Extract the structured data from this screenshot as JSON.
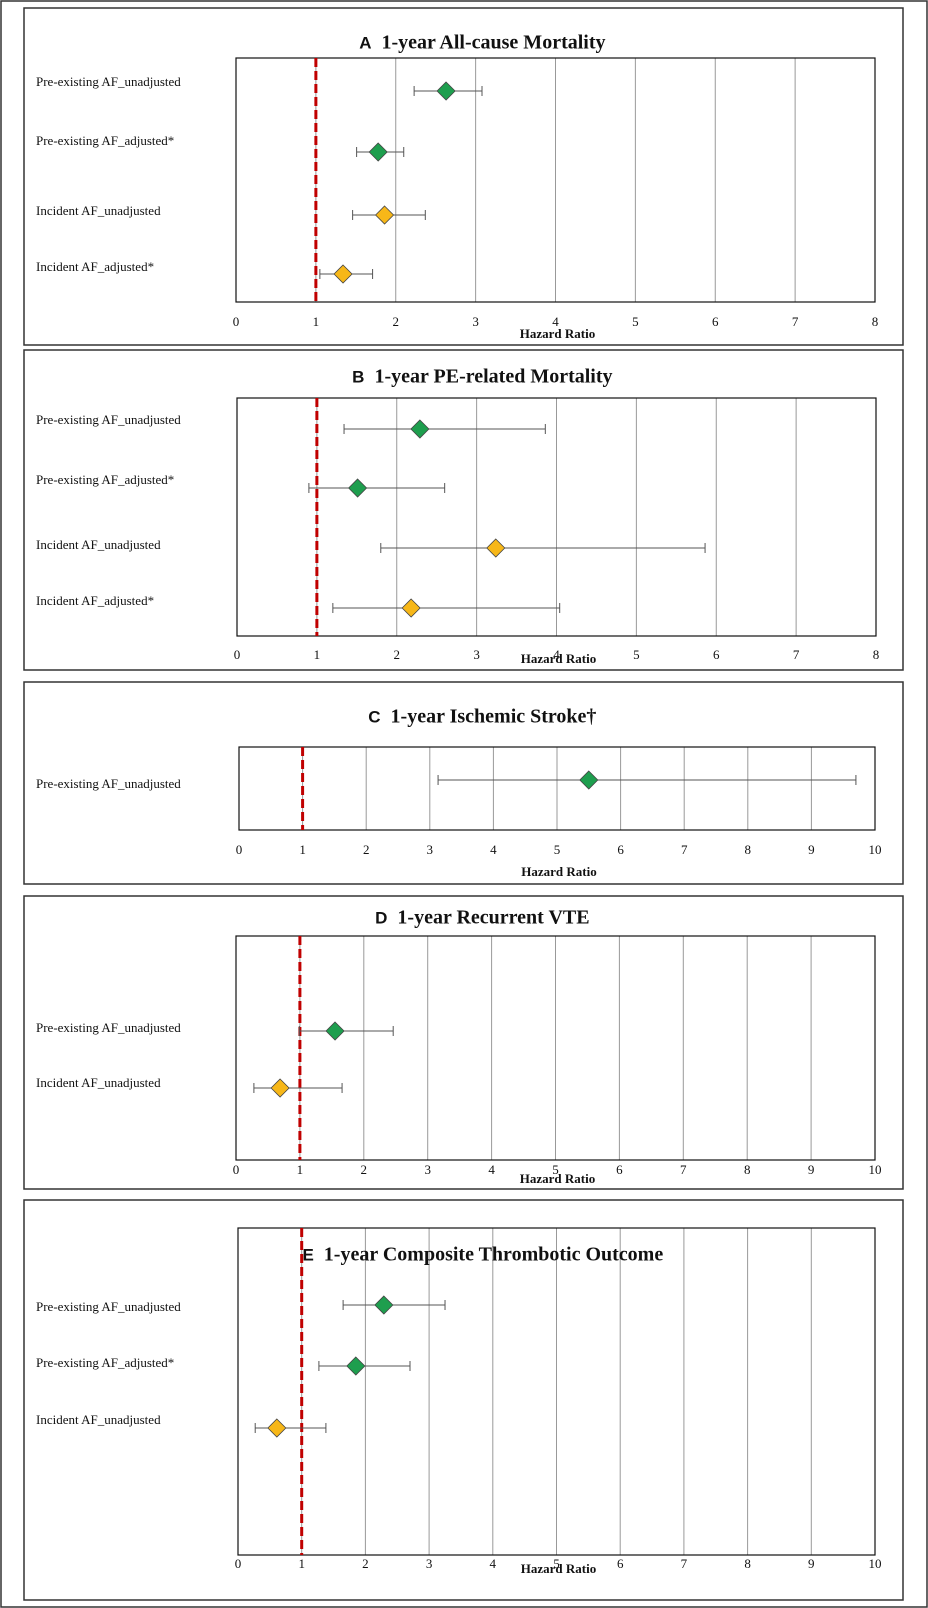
{
  "chart_data": [
    {
      "type": "forest",
      "panel_label": "A",
      "title": "1-year All-cause Mortality",
      "x_label": "Hazard Ratio",
      "categories": [
        "Pre-existing AF_unadjusted",
        "Pre-existing AF_adjusted*",
        "Incident AF_unadjusted",
        "Incident AF_adjusted*"
      ],
      "values": [
        2.63,
        1.78,
        1.86,
        1.34
      ],
      "lower": [
        2.23,
        1.51,
        1.46,
        1.05
      ],
      "upper": [
        3.08,
        2.1,
        2.37,
        1.71
      ],
      "colors": [
        "#1e9e4e",
        "#1e9e4e",
        "#f7b718",
        "#f7b718"
      ],
      "xlim": [
        0,
        8
      ],
      "xticks": [
        0,
        1,
        2,
        3,
        4,
        5,
        6,
        7,
        8
      ],
      "grid": true,
      "reference": 1,
      "reference_color": "#c00000"
    },
    {
      "type": "forest",
      "panel_label": "B",
      "title": "1-year PE-related Mortality",
      "x_label": "Hazard Ratio",
      "categories": [
        "Pre-existing AF_unadjusted",
        "Pre-existing AF_adjusted*",
        "Incident AF_unadjusted",
        "Incident AF_adjusted*"
      ],
      "values": [
        2.29,
        1.51,
        3.24,
        2.18
      ],
      "lower": [
        1.34,
        0.9,
        1.8,
        1.2
      ],
      "upper": [
        3.86,
        2.6,
        5.86,
        4.04
      ],
      "colors": [
        "#1e9e4e",
        "#1e9e4e",
        "#f7b718",
        "#f7b718"
      ],
      "xlim": [
        0,
        8
      ],
      "xticks": [
        0,
        1,
        2,
        3,
        4,
        5,
        6,
        7,
        8
      ],
      "grid": true,
      "reference": 1,
      "reference_color": "#c00000"
    },
    {
      "type": "forest",
      "panel_label": "C",
      "title": "1-year Ischemic Stroke†",
      "x_label": "Hazard Ratio",
      "categories": [
        "Pre-existing AF_unadjusted"
      ],
      "values": [
        5.5
      ],
      "lower": [
        3.13
      ],
      "upper": [
        9.7
      ],
      "colors": [
        "#1e9e4e"
      ],
      "xlim": [
        0,
        10
      ],
      "xticks": [
        0,
        1,
        2,
        3,
        4,
        5,
        6,
        7,
        8,
        9,
        10
      ],
      "grid": true,
      "reference": 1,
      "reference_color": "#c00000"
    },
    {
      "type": "forest",
      "panel_label": "D",
      "title": "1-year Recurrent VTE",
      "x_label": "Hazard Ratio",
      "categories": [
        "Pre-existing AF_unadjusted",
        "Incident AF_unadjusted"
      ],
      "values": [
        1.55,
        0.69
      ],
      "lower": [
        0.99,
        0.28
      ],
      "upper": [
        2.46,
        1.66
      ],
      "colors": [
        "#1e9e4e",
        "#f7b718"
      ],
      "xlim": [
        0,
        10
      ],
      "xticks": [
        0,
        1,
        2,
        3,
        4,
        5,
        6,
        7,
        8,
        9,
        10
      ],
      "grid": true,
      "reference": 1,
      "reference_color": "#c00000"
    },
    {
      "type": "forest",
      "panel_label": "E",
      "title": "1-year Composite Thrombotic Outcome",
      "x_label": "Hazard Ratio",
      "categories": [
        "Pre-existing AF_unadjusted",
        "Pre-existing AF_adjusted*",
        "Incident AF_unadjusted"
      ],
      "values": [
        2.29,
        1.85,
        0.61
      ],
      "lower": [
        1.65,
        1.27,
        0.27
      ],
      "upper": [
        3.25,
        2.7,
        1.38
      ],
      "colors": [
        "#1e9e4e",
        "#1e9e4e",
        "#f7b718"
      ],
      "xlim": [
        0,
        10
      ],
      "xticks": [
        0,
        1,
        2,
        3,
        4,
        5,
        6,
        7,
        8,
        9,
        10
      ],
      "grid": true,
      "reference": 1,
      "reference_color": "#c00000"
    }
  ]
}
